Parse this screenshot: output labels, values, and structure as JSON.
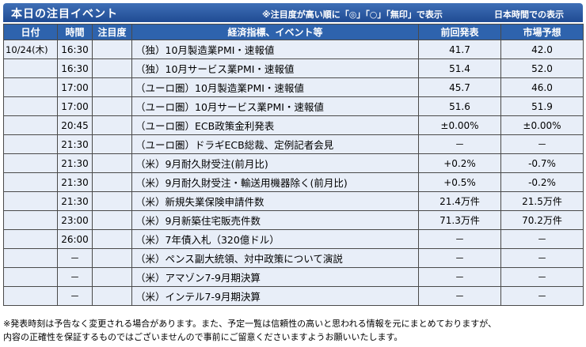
{
  "header": {
    "title": "本日の注目イベント",
    "note": "※注目度が高い順に「◎」「○」「無印」で表示",
    "timezone": "日本時間での表示"
  },
  "columns": [
    "日付",
    "時間",
    "注目度",
    "経済指標、イベント等",
    "前回発表",
    "市場予想"
  ],
  "rows": [
    {
      "date": "10/24(木)",
      "time": "16:30",
      "importance": "",
      "event": "（独）10月製造業PMI・速報値",
      "previous": "41.7",
      "forecast": "42.0"
    },
    {
      "date": "",
      "time": "16:30",
      "importance": "",
      "event": "（独）10月サービス業PMI・速報値",
      "previous": "51.4",
      "forecast": "52.0"
    },
    {
      "date": "",
      "time": "17:00",
      "importance": "",
      "event": "（ユーロ圏）10月製造業PMI・速報値",
      "previous": "45.7",
      "forecast": "46.0"
    },
    {
      "date": "",
      "time": "17:00",
      "importance": "",
      "event": "（ユーロ圏）10月サービス業PMI・速報値",
      "previous": "51.6",
      "forecast": "51.9"
    },
    {
      "date": "",
      "time": "20:45",
      "importance": "",
      "event": "（ユーロ圏）ECB政策金利発表",
      "previous": "±0.00%",
      "forecast": "±0.00%"
    },
    {
      "date": "",
      "time": "21:30",
      "importance": "",
      "event": "（ユーロ圏）ドラギECB総裁、定例記者会見",
      "previous": "－",
      "forecast": "－"
    },
    {
      "date": "",
      "time": "21:30",
      "importance": "",
      "event": "（米）9月耐久財受注(前月比)",
      "previous": "+0.2%",
      "forecast": "-0.7%"
    },
    {
      "date": "",
      "time": "21:30",
      "importance": "",
      "event": "（米）9月耐久財受注・輸送用機器除く(前月比)",
      "previous": "+0.5%",
      "forecast": "-0.2%"
    },
    {
      "date": "",
      "time": "21:30",
      "importance": "",
      "event": "（米）新規失業保険申請件数",
      "previous": "21.4万件",
      "forecast": "21.5万件"
    },
    {
      "date": "",
      "time": "23:00",
      "importance": "",
      "event": "（米）9月新築住宅販売件数",
      "previous": "71.3万件",
      "forecast": "70.2万件"
    },
    {
      "date": "",
      "time": "26:00",
      "importance": "",
      "event": "（米）7年債入札（320億ドル）",
      "previous": "－",
      "forecast": "－"
    },
    {
      "date": "",
      "time": "－",
      "importance": "",
      "event": "（米）ペンス副大統領、対中政策について演説",
      "previous": "－",
      "forecast": "－"
    },
    {
      "date": "",
      "time": "－",
      "importance": "",
      "event": "（米）アマゾン7-9月期決算",
      "previous": "－",
      "forecast": "－"
    },
    {
      "date": "",
      "time": "－",
      "importance": "",
      "event": "（米）インテル7-9月期決算",
      "previous": "－",
      "forecast": "－"
    }
  ],
  "footer": {
    "line1": "※発表時刻は予告なく変更される場合があります。また、予定一覧は信頼性の高いと思われる情報を元にまとめておりますが、",
    "line2": "内容の正確性を保証するものではございませんので事前にご留意くださいますようお願いいたします。"
  }
}
